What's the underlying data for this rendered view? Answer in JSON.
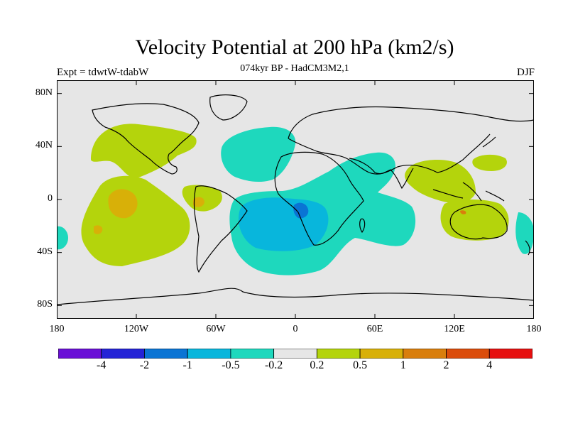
{
  "title": "Velocity Potential at 200 hPa (km2/s)",
  "subtitle": "074kyr BP - HadCM3M2,1",
  "experiment": "Expt = tdwtW-tdabW",
  "season": "DJF",
  "map": {
    "projection": "cylindrical equidistant",
    "lon_range": [
      -180,
      180
    ],
    "lat_range": [
      -90,
      90
    ],
    "background_color": "#e6e6e6",
    "y_ticks": [
      {
        "lat": 80,
        "label": "80N"
      },
      {
        "lat": 40,
        "label": "40N"
      },
      {
        "lat": 0,
        "label": "0"
      },
      {
        "lat": -40,
        "label": "40S"
      },
      {
        "lat": -80,
        "label": "80S"
      }
    ],
    "x_ticks": [
      {
        "lon": -180,
        "label": "180"
      },
      {
        "lon": -120,
        "label": "120W"
      },
      {
        "lon": -60,
        "label": "60W"
      },
      {
        "lon": 0,
        "label": "0"
      },
      {
        "lon": 60,
        "label": "60E"
      },
      {
        "lon": 120,
        "label": "120E"
      },
      {
        "lon": 180,
        "label": "180"
      }
    ]
  },
  "colorbar": {
    "colors": [
      "#6a0fd6",
      "#2423d6",
      "#0a74d4",
      "#08b6dc",
      "#1ed8bd",
      "#e6e6e6",
      "#b4d40c",
      "#d8b008",
      "#d97e0c",
      "#db4c0a",
      "#e60f0f"
    ],
    "labels": [
      "-4",
      "-2",
      "-1",
      "-0.5",
      "-0.2",
      "0.2",
      "0.5",
      "1",
      "2",
      "4"
    ]
  }
}
